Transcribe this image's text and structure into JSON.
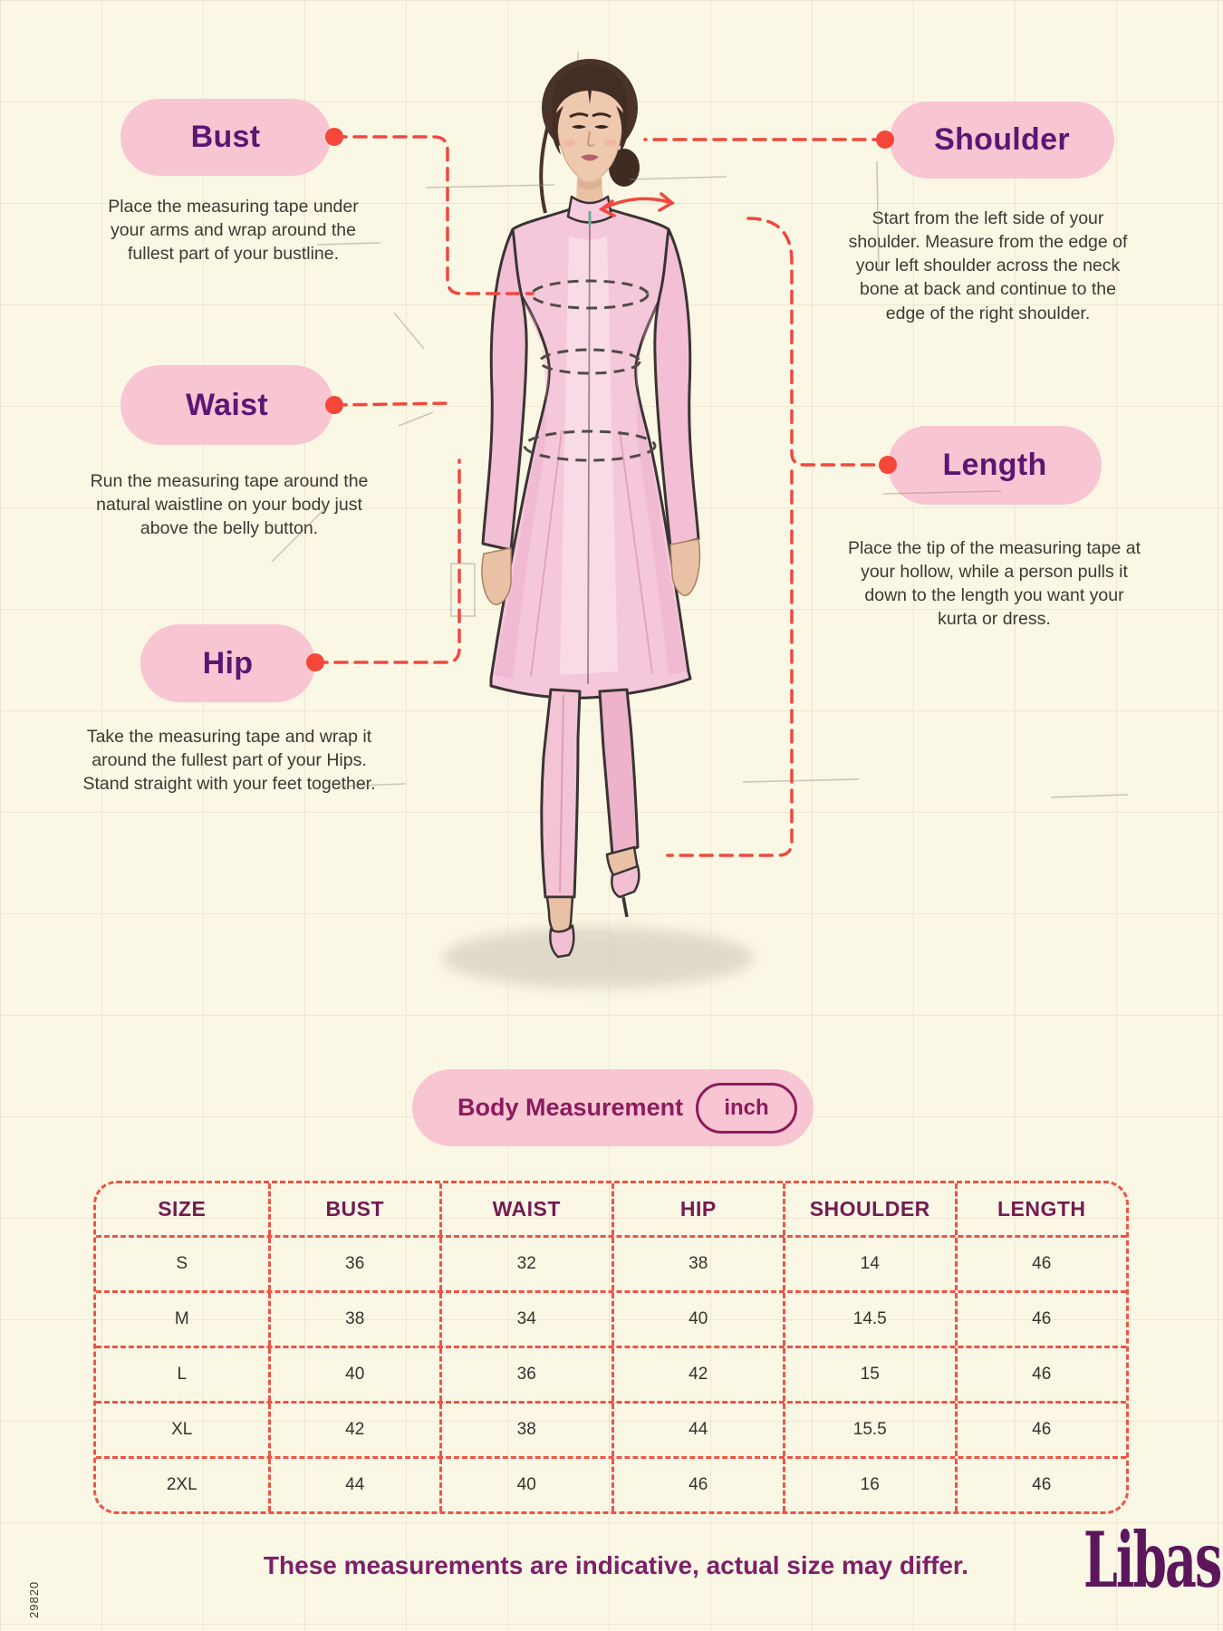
{
  "palette": {
    "background": "#fbf7e5",
    "pill_pink": "#f8c6d2",
    "label_purple": "#5c1672",
    "magenta": "#8c1b5e",
    "connector_red": "#f0483e",
    "table_border_red": "#ef5347",
    "footer_purple": "#7c2168",
    "brand_purple": "#5c165c"
  },
  "callouts": [
    {
      "id": "bust",
      "label": "Bust",
      "description": "Place the measuring tape under your arms and wrap around the fullest part of your bustline."
    },
    {
      "id": "waist",
      "label": "Waist",
      "description": "Run the measuring tape around the natural waistline on your body just above the belly button."
    },
    {
      "id": "hip",
      "label": "Hip",
      "description": "Take the measuring tape and wrap it around the fullest part of your Hips. Stand straight with your feet together."
    },
    {
      "id": "shoulder",
      "label": "Shoulder",
      "description": "Start from the left side of your shoulder. Measure from the edge of your left shoulder across the neck bone at back and continue to the edge of the right shoulder."
    },
    {
      "id": "length",
      "label": "Length",
      "description": "Place the tip of the measuring tape at your hollow, while a person pulls it down to the length you want your kurta or dress."
    }
  ],
  "banner": {
    "title": "Body Measurement",
    "unit": "inch"
  },
  "size_table": {
    "headers": [
      "SIZE",
      "BUST",
      "WAIST",
      "HIP",
      "SHOULDER",
      "LENGTH"
    ],
    "rows": [
      [
        "S",
        "36",
        "32",
        "38",
        "14",
        "46"
      ],
      [
        "M",
        "38",
        "34",
        "40",
        "14.5",
        "46"
      ],
      [
        "L",
        "40",
        "36",
        "42",
        "15",
        "46"
      ],
      [
        "XL",
        "42",
        "38",
        "44",
        "15.5",
        "46"
      ],
      [
        "2XL",
        "44",
        "40",
        "46",
        "16",
        "46"
      ]
    ]
  },
  "footer": {
    "note": "These measurements are indicative, actual size may differ.",
    "brand": "Libas"
  },
  "sku": "29820"
}
